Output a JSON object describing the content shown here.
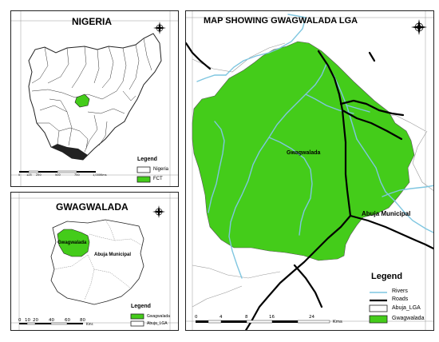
{
  "nigeria_panel": {
    "title": "NIGERIA",
    "legend_title": "Legend",
    "legend_items": [
      {
        "label": "Nigeria",
        "color": "#ffffff"
      },
      {
        "label": "FCT",
        "color": "#44cc1a"
      }
    ],
    "scale_labels": [
      "0",
      "125",
      "250",
      "500",
      "750",
      "1,000",
      "Kms"
    ]
  },
  "gwagwalada_panel": {
    "title": "GWAGWALADA",
    "area_labels": [
      "Gwagwalada",
      "Abuja Municipal"
    ],
    "legend_title": "Legend",
    "legend_items": [
      {
        "label": "Gwagwalada",
        "color": "#44cc1a"
      },
      {
        "label": "Abuja_LGA",
        "color": "#ffffff"
      }
    ],
    "scale_labels": [
      "0",
      "10",
      "20",
      "40",
      "60",
      "80",
      "Kms"
    ]
  },
  "main_panel": {
    "title": "MAP SHOWING GWAGWALADA LGA",
    "area_labels": [
      "Gwagwalada",
      "Abuja Municipal"
    ],
    "legend_title": "Legend",
    "legend_items": [
      {
        "label": "Rivers",
        "symbol": "line",
        "color": "#7fc6e0"
      },
      {
        "label": "Roads",
        "symbol": "thick-line",
        "color": "#000000"
      },
      {
        "label": "Abuja_LGA",
        "symbol": "box",
        "color": "#ffffff"
      },
      {
        "label": "Gwagwalada",
        "symbol": "box",
        "color": "#44cc1a"
      }
    ],
    "scale_labels": [
      "0",
      "4",
      "8",
      "16",
      "24",
      "Kms"
    ]
  },
  "colors": {
    "lga_fill": "#44cc1a",
    "river": "#7fc6e0",
    "road": "#000000",
    "boundary": "#999999"
  }
}
